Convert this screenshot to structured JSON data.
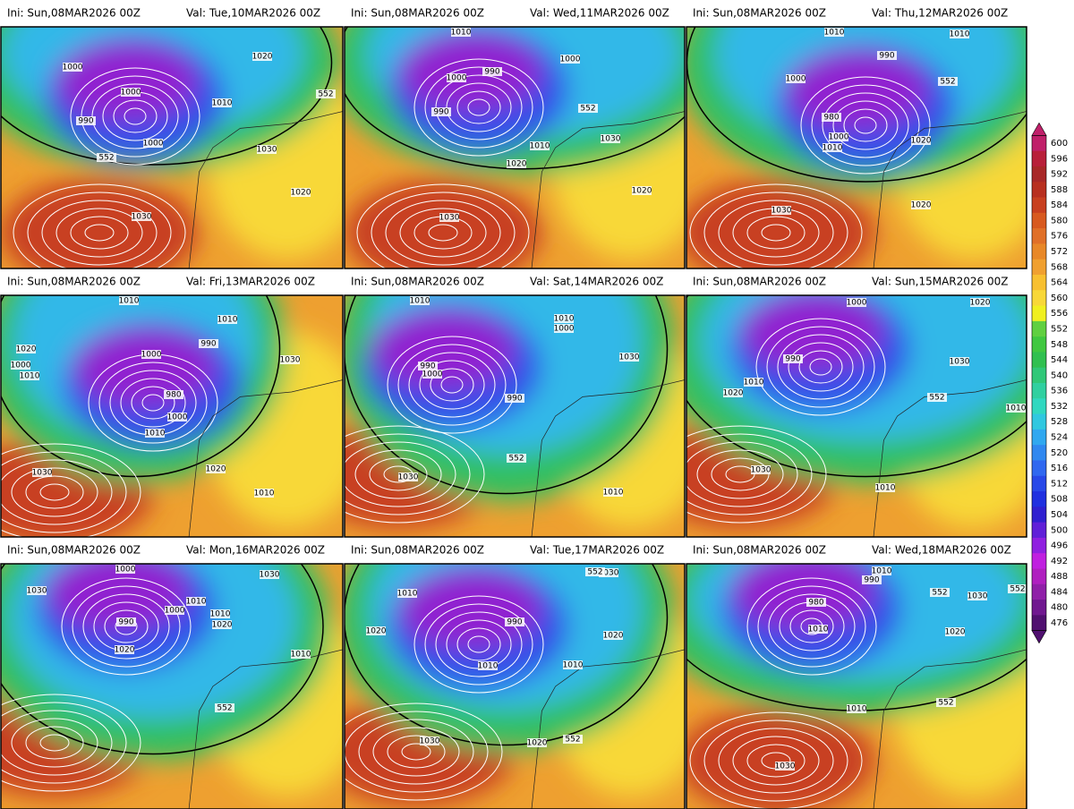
{
  "panels": [
    {
      "ini": "Ini: Sun,08MAR2026 00Z",
      "val": "Val: Tue,10MAR2026 00Z",
      "labels": [
        "1000",
        "1000",
        "990",
        "1000",
        "1010",
        "1020",
        "552",
        "552",
        "1030",
        "1020",
        "1030"
      ]
    },
    {
      "ini": "Ini: Sun,08MAR2026 00Z",
      "val": "Val: Wed,11MAR2026 00Z",
      "labels": [
        "1010",
        "990",
        "1000",
        "990",
        "1000",
        "552",
        "1010",
        "1020",
        "1030",
        "1020",
        "1030"
      ]
    },
    {
      "ini": "Ini: Sun,08MAR2026 00Z",
      "val": "Val: Thu,12MAR2026 00Z",
      "labels": [
        "1010",
        "1010",
        "1000",
        "990",
        "980",
        "1000",
        "1010",
        "1020",
        "552",
        "1020",
        "1030"
      ]
    },
    {
      "ini": "Ini: Sun,08MAR2026 00Z",
      "val": "Val: Fri,13MAR2026 00Z",
      "labels": [
        "1010",
        "1010",
        "1020",
        "1000",
        "990",
        "1000",
        "1010",
        "980",
        "1000",
        "1010",
        "1030",
        "1020",
        "1010",
        "1030"
      ]
    },
    {
      "ini": "Ini: Sun,08MAR2026 00Z",
      "val": "Val: Sat,14MAR2026 00Z",
      "labels": [
        "1010",
        "1010",
        "1000",
        "990",
        "1000",
        "990",
        "552",
        "1030",
        "1010",
        "1030"
      ]
    },
    {
      "ini": "Ini: Sun,08MAR2026 00Z",
      "val": "Val: Sun,15MAR2026 00Z",
      "labels": [
        "1000",
        "1020",
        "990",
        "1030",
        "1010",
        "1020",
        "552",
        "1010",
        "1030",
        "1010"
      ]
    },
    {
      "ini": "Ini: Sun,08MAR2026 00Z",
      "val": "Val: Mon,16MAR2026 00Z",
      "labels": [
        "1000",
        "1030",
        "990",
        "1000",
        "1010",
        "1010",
        "1030",
        "1020",
        "1020",
        "1010",
        "552"
      ]
    },
    {
      "ini": "Ini: Sun,08MAR2026 00Z",
      "val": "Val: Tue,17MAR2026 00Z",
      "labels": [
        "1030",
        "552",
        "1010",
        "990",
        "1020",
        "1020",
        "1010",
        "1010",
        "1030",
        "1020",
        "552"
      ]
    },
    {
      "ini": "Ini: Sun,08MAR2026 00Z",
      "val": "Val: Wed,18MAR2026 00Z",
      "labels": [
        "1010",
        "990",
        "552",
        "1030",
        "552",
        "980",
        "1010",
        "1020",
        "1010",
        "552",
        "1030"
      ]
    }
  ],
  "colorbar": {
    "ticks": [
      600,
      596,
      592,
      588,
      584,
      580,
      576,
      572,
      568,
      564,
      560,
      556,
      552,
      548,
      544,
      540,
      536,
      532,
      528,
      524,
      520,
      516,
      512,
      508,
      504,
      500,
      496,
      492,
      488,
      484,
      480,
      476
    ],
    "colors": [
      "#c0206a",
      "#b8203a",
      "#a82828",
      "#b83020",
      "#c84020",
      "#d85a20",
      "#e07028",
      "#e88828",
      "#f0a030",
      "#f8c030",
      "#f8d838",
      "#f0f020",
      "#60d040",
      "#40c840",
      "#30c050",
      "#30c878",
      "#30d0a0",
      "#30d8c0",
      "#30c8e0",
      "#30a8f0",
      "#3088f0",
      "#3068f0",
      "#2848e8",
      "#2030e0",
      "#3020d0",
      "#6020d8",
      "#9020e0",
      "#c020e0",
      "#b020c0",
      "#9020a8",
      "#701890",
      "#501070"
    ]
  }
}
